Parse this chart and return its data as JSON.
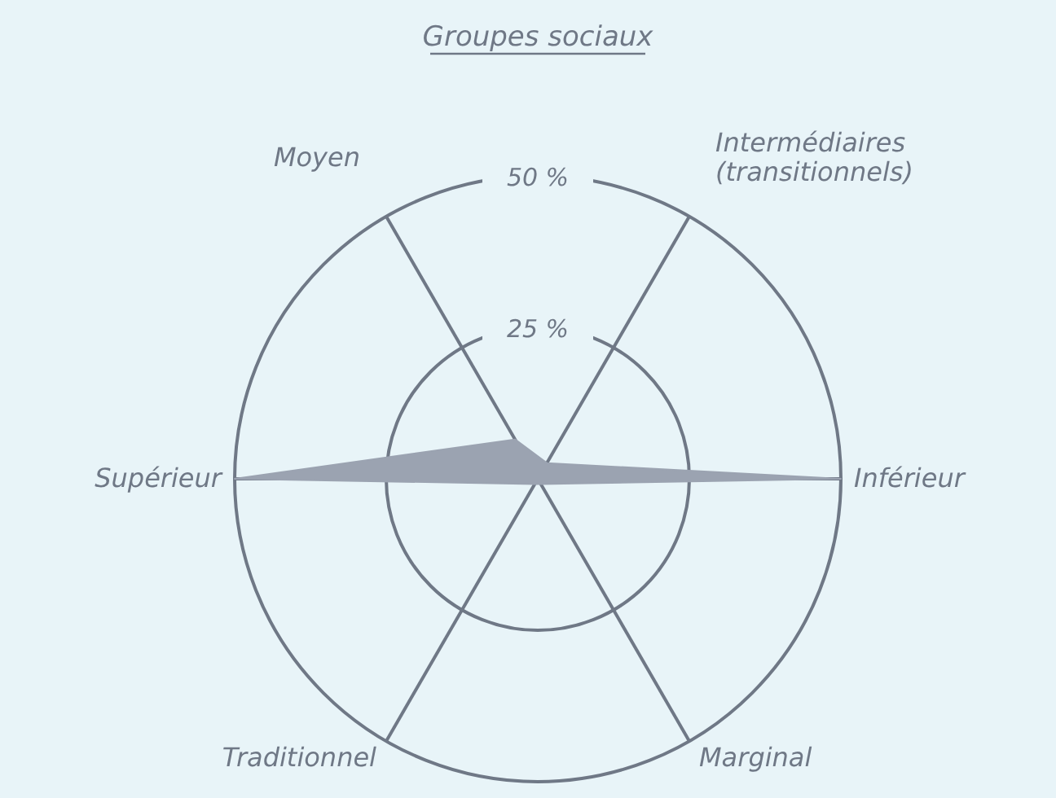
{
  "chart_data": {
    "type": "radar",
    "title": "Groupes sociaux",
    "categories": [
      "Intermédiaires\n(transitionnels)",
      "Inférieur",
      "Marginal",
      "Traditionnel",
      "Supérieur",
      "Moyen"
    ],
    "series": [
      {
        "color": "#9ba3b1",
        "values": [
          3,
          50,
          1,
          1,
          50,
          7.5
        ]
      }
    ],
    "ylim": [
      0,
      50
    ],
    "yticks": [
      {
        "value": 25,
        "label": "25 %"
      },
      {
        "value": 50,
        "label": "50 %"
      }
    ],
    "grid": true
  }
}
